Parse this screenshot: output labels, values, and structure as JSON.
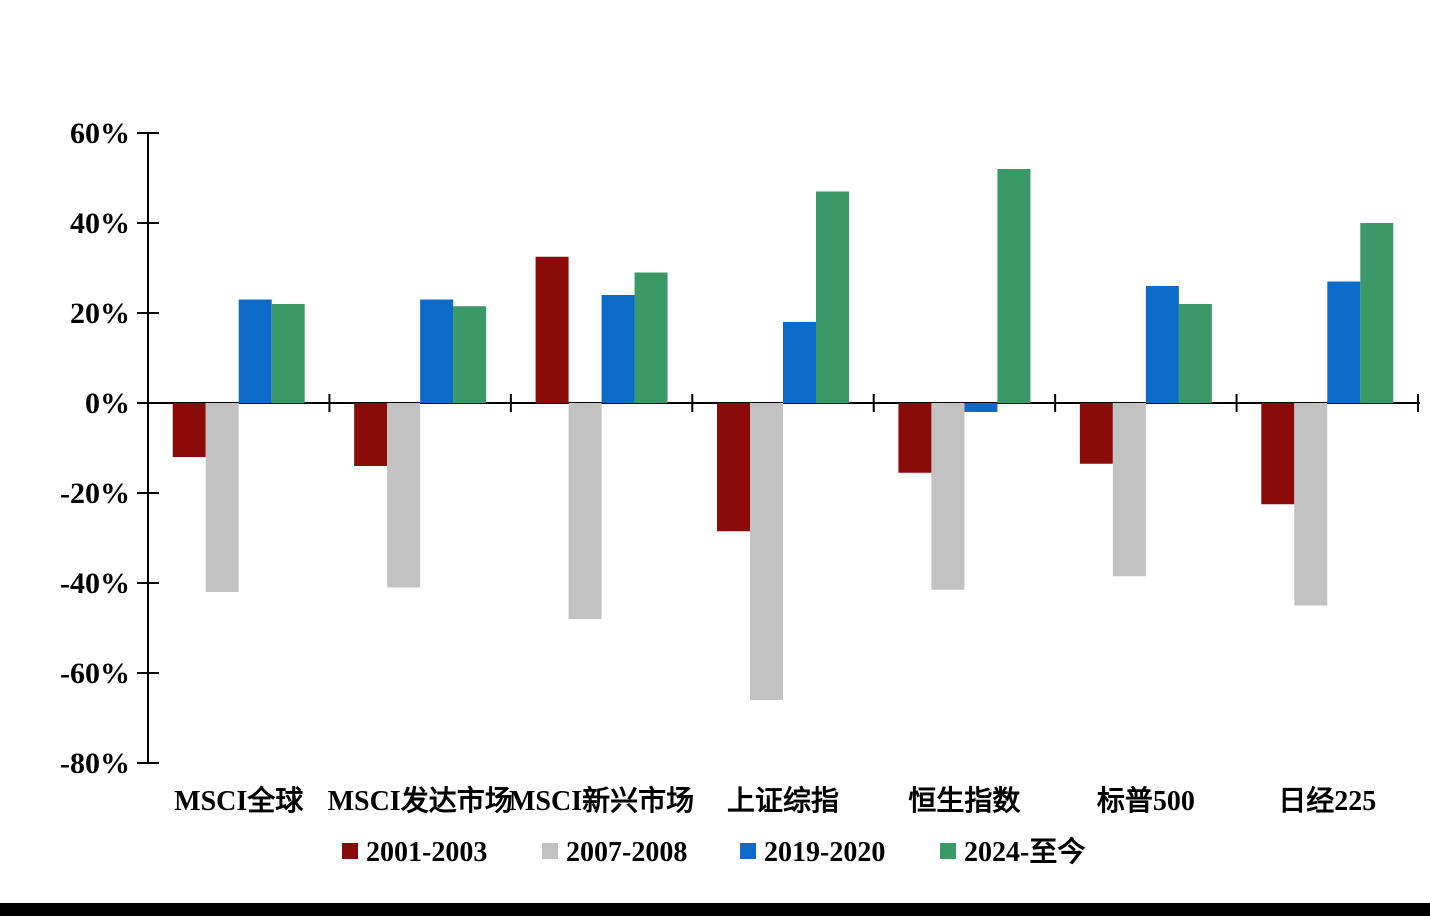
{
  "page": {
    "background_color": "#ffffff",
    "bottom_bar_color": "#000000"
  },
  "chart_data": {
    "type": "bar",
    "title": "",
    "xlabel": "",
    "ylabel": "",
    "categories": [
      "MSCI全球",
      "MSCI发达市场",
      "MSCI新兴市场",
      "上证综指",
      "恒生指数",
      "标普500",
      "日经225"
    ],
    "series": [
      {
        "name": "2001-2003",
        "color": "#8B0B0B",
        "values": [
          -12,
          -14,
          32.5,
          -28.5,
          -15.5,
          -13.5,
          -22.5
        ]
      },
      {
        "name": "2007-2008",
        "color": "#C2C2C2",
        "values": [
          -42,
          -41,
          -48,
          -66,
          -41.5,
          -38.5,
          -45
        ]
      },
      {
        "name": "2019-2020",
        "color": "#0C6BC9",
        "values": [
          23,
          23,
          24,
          18,
          -2,
          26,
          27
        ]
      },
      {
        "name": "2024-至今",
        "color": "#3A9966",
        "values": [
          22,
          21.5,
          29,
          47,
          52,
          22,
          40
        ]
      }
    ],
    "y_axis": {
      "min": -80,
      "max": 60,
      "step": 20,
      "tick_labels": [
        "60%",
        "40%",
        "20%",
        "0%",
        "-20%",
        "-40%",
        "-60%",
        "-80%"
      ],
      "tick_suffix": "%"
    },
    "grid": false,
    "legend_position": "bottom",
    "axis_color": "#000000",
    "text_color": "#000000"
  }
}
